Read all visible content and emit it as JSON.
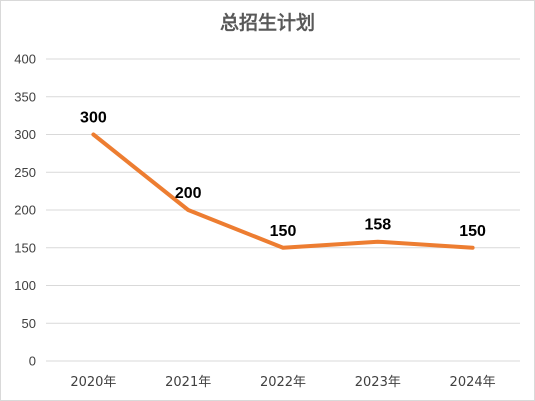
{
  "chart_data": {
    "type": "line",
    "title": "总招生计划",
    "categories": [
      "2020年",
      "2021年",
      "2022年",
      "2023年",
      "2024年"
    ],
    "series": [
      {
        "values": [
          300,
          200,
          150,
          158,
          150
        ],
        "color": "#ED7D31"
      }
    ],
    "ylim": [
      0,
      400
    ],
    "yticks": [
      0,
      50,
      100,
      150,
      200,
      250,
      300,
      350,
      400
    ],
    "grid": true,
    "data_labels": true,
    "legend": "none"
  }
}
